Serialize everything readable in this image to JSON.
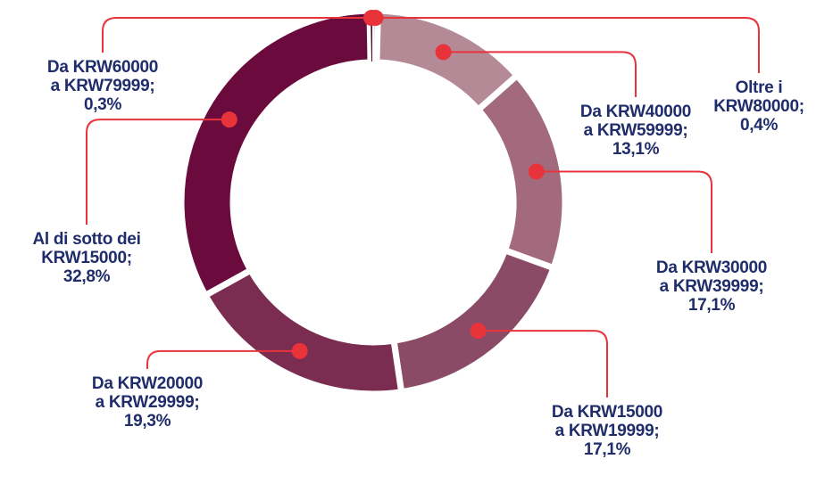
{
  "chart_data": {
    "type": "donut",
    "categories": [
      "Oltre i KRW80000;",
      "Da KRW40000 a KRW59999;",
      "Da KRW30000 a KRW39999;",
      "Da KRW15000 a KRW19999;",
      "Da KRW20000 a KRW29999;",
      "Al di sotto dei KRW15000;",
      "Da KRW60000 a KRW79999;"
    ],
    "values": [
      0.4,
      13.1,
      17.1,
      17.1,
      19.3,
      32.8,
      0.3
    ],
    "value_labels": [
      "0,4%",
      "13,1%",
      "17,1%",
      "17,1%",
      "19,3%",
      "32,8%",
      "0,3%"
    ],
    "colors": [
      "#c9a3ae",
      "#b58a97",
      "#a36a7e",
      "#8b4a66",
      "#7a2d50",
      "#6b0a3c",
      "#5e0634"
    ]
  }
}
